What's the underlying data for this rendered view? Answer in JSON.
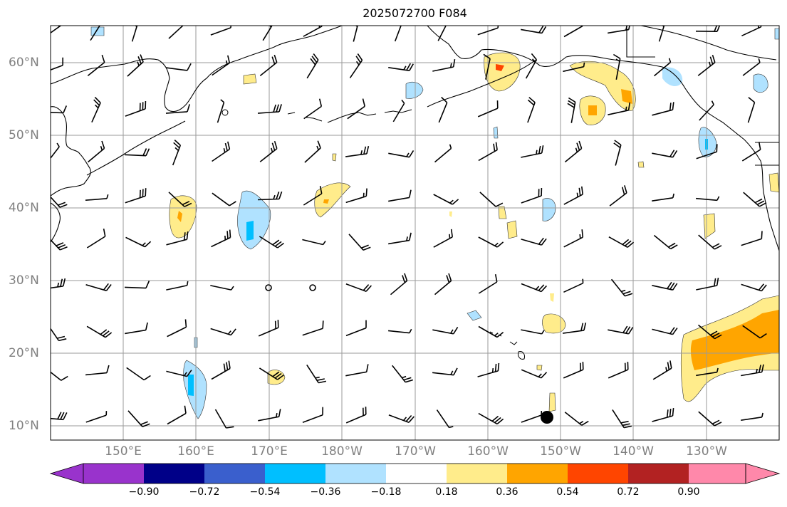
{
  "title": "2025072700 F084",
  "lat_labels": [
    {
      "text": "60°N",
      "lat": 60
    },
    {
      "text": "50°N",
      "lat": 50
    },
    {
      "text": "40°N",
      "lat": 40
    },
    {
      "text": "30°N",
      "lat": 30
    },
    {
      "text": "20°N",
      "lat": 20
    },
    {
      "text": "10°N",
      "lat": 10
    }
  ],
  "lon_labels": [
    {
      "text": "150°E",
      "lon": 150
    },
    {
      "text": "160°E",
      "lon": 160
    },
    {
      "text": "170°E",
      "lon": 170
    },
    {
      "text": "180°W",
      "lon": 180
    },
    {
      "text": "170°W",
      "lon": 190
    },
    {
      "text": "160°W",
      "lon": 200
    },
    {
      "text": "150°W",
      "lon": 210
    },
    {
      "text": "140°W",
      "lon": 220
    },
    {
      "text": "130°W",
      "lon": 230
    }
  ],
  "colorbar": {
    "ticks": [
      "−0.90",
      "−0.72",
      "−0.54",
      "−0.36",
      "−0.18",
      "0.18",
      "0.36",
      "0.54",
      "0.72",
      "0.90"
    ],
    "colors": [
      "#9933cc",
      "#000088",
      "#3a5fcd",
      "#00bfff",
      "#b0e2ff",
      "#ffffff",
      "#ffec8b",
      "#ffa500",
      "#ff4500",
      "#b22222",
      "#ff88aa"
    ]
  },
  "map_extent": {
    "lon_min": 140,
    "lon_max": 240,
    "lat_min": 8,
    "lat_max": 65
  },
  "marker": {
    "name": "black-dot",
    "lon": 208,
    "lat": 11.2
  }
}
